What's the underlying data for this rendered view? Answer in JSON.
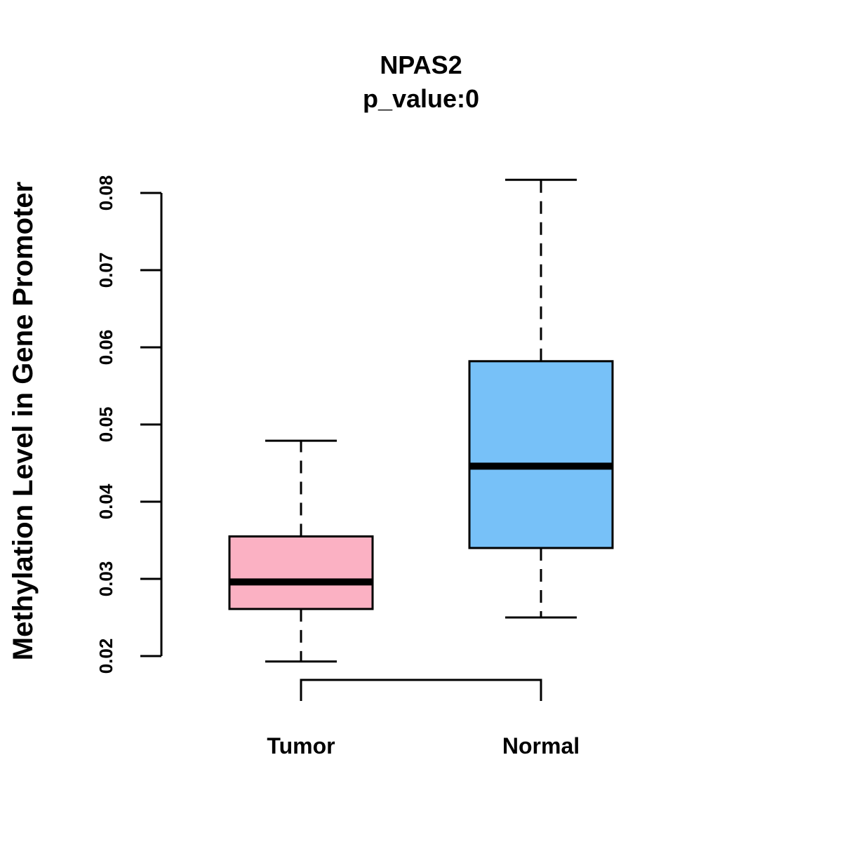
{
  "chart_data": {
    "type": "boxplot",
    "title": "NPAS2",
    "subtitle": "p_value:0",
    "ylabel": "Methylation Level in Gene Promoter",
    "xlabel": "",
    "ylim": [
      0.02,
      0.08
    ],
    "yticks": [
      "0.02",
      "0.03",
      "0.04",
      "0.05",
      "0.06",
      "0.07",
      "0.08"
    ],
    "categories": [
      "Tumor",
      "Normal"
    ],
    "boxes": [
      {
        "name": "Tumor",
        "min": 0.0193,
        "q1": 0.0261,
        "median": 0.0296,
        "q3": 0.0355,
        "max": 0.0479,
        "color": "#FBB1C3"
      },
      {
        "name": "Normal",
        "min": 0.025,
        "q1": 0.034,
        "median": 0.0446,
        "q3": 0.0582,
        "max": 0.0817,
        "color": "#77C1F8"
      }
    ],
    "comparison_bracket": [
      "Tumor",
      "Normal"
    ]
  }
}
